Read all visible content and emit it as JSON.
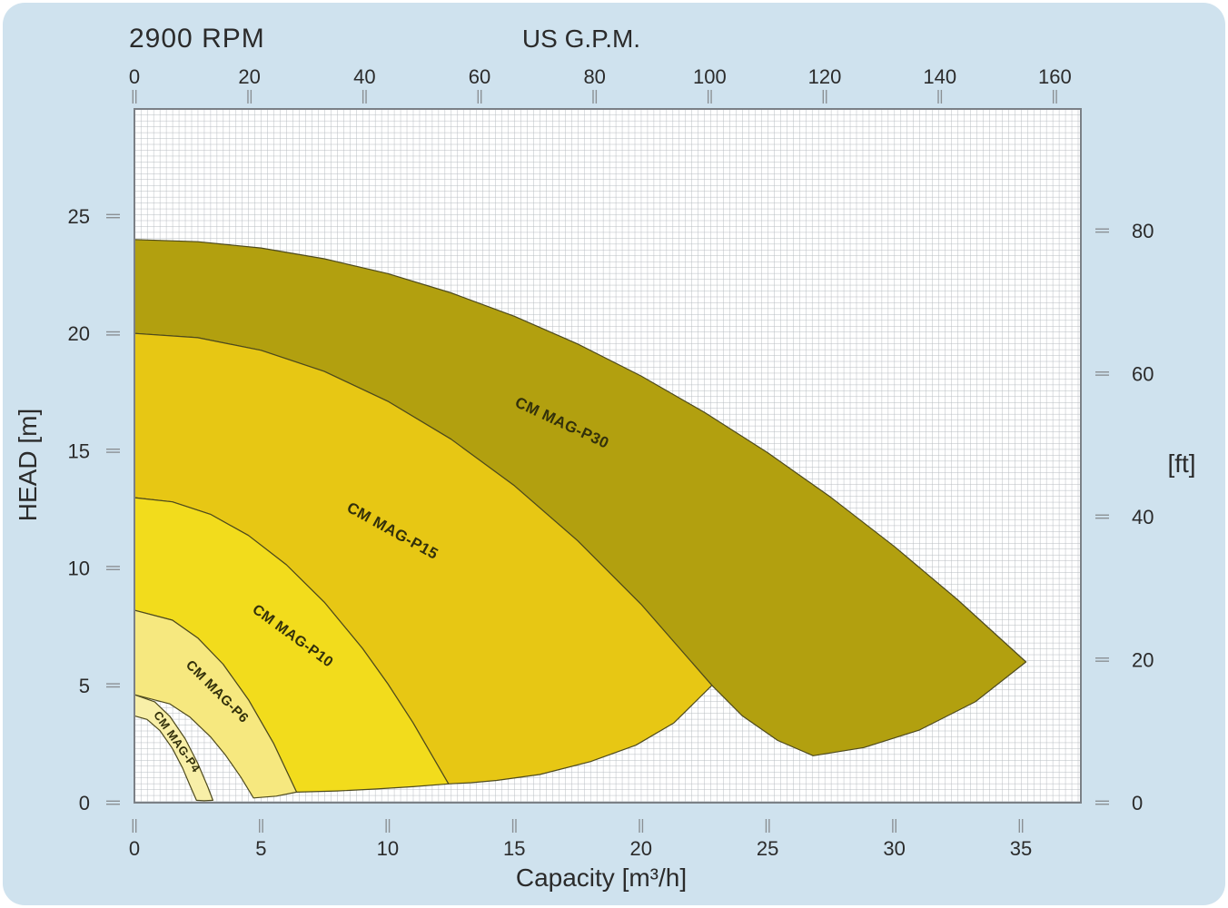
{
  "title": "2900 RPM",
  "chart_data": {
    "type": "area",
    "title": "2900 RPM",
    "xlabel": "Capacity  [m³/h]",
    "x2label": "US G.P.M.",
    "ylabel": "HEAD [m]",
    "y2label": "[ft]",
    "xlim": [
      0,
      37.4
    ],
    "ylim": [
      0,
      29.6
    ],
    "grid": true,
    "x_ticks": [
      0,
      5,
      10,
      15,
      20,
      25,
      30,
      35
    ],
    "x2_ticks_gpm": [
      0,
      20,
      40,
      60,
      80,
      100,
      120,
      140,
      160
    ],
    "y_ticks": [
      0,
      5,
      10,
      15,
      20,
      25
    ],
    "y2_ticks_ft": [
      0,
      20,
      40,
      60,
      80
    ],
    "units": {
      "x": "m³/h",
      "x2": "US G.P.M.",
      "y": "m",
      "y2": "ft"
    },
    "outline_color": "#4e4a1d",
    "series": [
      {
        "name": "CM MAG-P30",
        "color": "#b2a00f",
        "label_pos": [
          16.8,
          16.0
        ],
        "label_angle": 25,
        "label_size": 17,
        "envelope": [
          [
            0,
            24
          ],
          [
            2.5,
            23.91
          ],
          [
            5,
            23.64
          ],
          [
            7.5,
            23.18
          ],
          [
            10,
            22.55
          ],
          [
            12.5,
            21.73
          ],
          [
            15,
            20.73
          ],
          [
            17.5,
            19.55
          ],
          [
            20,
            18.19
          ],
          [
            22.5,
            16.64
          ],
          [
            25,
            14.92
          ],
          [
            27.5,
            13.01
          ],
          [
            30,
            10.92
          ],
          [
            32.5,
            8.65
          ],
          [
            35.2,
            6.0
          ],
          [
            33.2,
            4.3
          ],
          [
            31,
            3.1
          ],
          [
            28.8,
            2.35
          ],
          [
            26.8,
            2.0
          ],
          [
            25.4,
            2.65
          ],
          [
            24.0,
            3.7
          ],
          [
            22.8,
            5.0
          ],
          [
            20,
            8.46
          ],
          [
            17.5,
            11.16
          ],
          [
            15,
            13.51
          ],
          [
            12.5,
            15.49
          ],
          [
            10,
            17.11
          ],
          [
            7.5,
            18.38
          ],
          [
            5,
            19.28
          ],
          [
            2.5,
            19.82
          ],
          [
            0,
            20
          ]
        ]
      },
      {
        "name": "CM MAG-P15",
        "color": "#e7c714",
        "label_pos": [
          10.1,
          11.4
        ],
        "label_angle": 29,
        "label_size": 17,
        "envelope": [
          [
            0,
            20
          ],
          [
            2.5,
            19.82
          ],
          [
            5,
            19.28
          ],
          [
            7.5,
            18.38
          ],
          [
            10,
            17.11
          ],
          [
            12.5,
            15.49
          ],
          [
            15,
            13.51
          ],
          [
            17.5,
            11.16
          ],
          [
            20,
            8.46
          ],
          [
            22.8,
            5.0
          ],
          [
            21.3,
            3.4
          ],
          [
            19.8,
            2.45
          ],
          [
            18,
            1.75
          ],
          [
            16,
            1.2
          ],
          [
            14.3,
            0.95
          ],
          [
            13.3,
            0.85
          ],
          [
            12.4,
            0.8
          ],
          [
            11,
            3.41
          ],
          [
            10,
            5.07
          ],
          [
            9,
            6.58
          ],
          [
            7.5,
            8.54
          ],
          [
            6,
            10.14
          ],
          [
            4.5,
            11.39
          ],
          [
            3,
            12.29
          ],
          [
            1.5,
            12.82
          ],
          [
            0,
            13
          ]
        ]
      },
      {
        "name": "CM MAG-P10",
        "color": "#f2dc1c",
        "label_pos": [
          6.15,
          6.95
        ],
        "label_angle": 36,
        "label_size": 16,
        "envelope": [
          [
            0,
            13
          ],
          [
            1.5,
            12.82
          ],
          [
            3,
            12.29
          ],
          [
            4.5,
            11.39
          ],
          [
            6,
            10.14
          ],
          [
            7.5,
            8.54
          ],
          [
            9,
            6.58
          ],
          [
            10,
            5.07
          ],
          [
            11,
            3.41
          ],
          [
            12.4,
            0.8
          ],
          [
            11,
            0.68
          ],
          [
            9.5,
            0.58
          ],
          [
            8,
            0.5
          ],
          [
            6.4,
            0.45
          ],
          [
            5.5,
            2.51
          ],
          [
            4.5,
            4.39
          ],
          [
            3.5,
            5.9
          ],
          [
            2.5,
            7.02
          ],
          [
            1.5,
            7.78
          ],
          [
            0,
            8.2
          ]
        ]
      },
      {
        "name": "CM MAG-P6",
        "color": "#f6e87f",
        "label_pos": [
          3.15,
          4.6
        ],
        "label_angle": 45,
        "label_size": 15,
        "envelope": [
          [
            0,
            8.2
          ],
          [
            1.5,
            7.78
          ],
          [
            2.5,
            7.02
          ],
          [
            3.5,
            5.9
          ],
          [
            4.5,
            4.39
          ],
          [
            5.5,
            2.51
          ],
          [
            6.4,
            0.45
          ],
          [
            5.6,
            0.28
          ],
          [
            4.7,
            0.2
          ],
          [
            4.2,
            1.09
          ],
          [
            3.6,
            2.02
          ],
          [
            3.0,
            2.81
          ],
          [
            2.2,
            3.64
          ],
          [
            1.4,
            4.21
          ],
          [
            0,
            4.6
          ]
        ]
      },
      {
        "name": "CM MAG-P4",
        "color": "#f8efa8",
        "label_pos": [
          1.55,
          2.5
        ],
        "label_angle": 55,
        "label_size": 13,
        "envelope": [
          [
            0,
            4.6
          ],
          [
            0.8,
            4.3
          ],
          [
            1.4,
            3.68
          ],
          [
            2,
            2.73
          ],
          [
            2.5,
            1.68
          ],
          [
            2.9,
            0.66
          ],
          [
            3.1,
            0.1
          ],
          [
            2.75,
            0.08
          ],
          [
            2.45,
            0.1
          ],
          [
            2.2,
            0.72
          ],
          [
            1.9,
            1.48
          ],
          [
            1.5,
            2.31
          ],
          [
            1,
            3.08
          ],
          [
            0.5,
            3.55
          ],
          [
            0,
            3.7
          ]
        ]
      }
    ]
  }
}
